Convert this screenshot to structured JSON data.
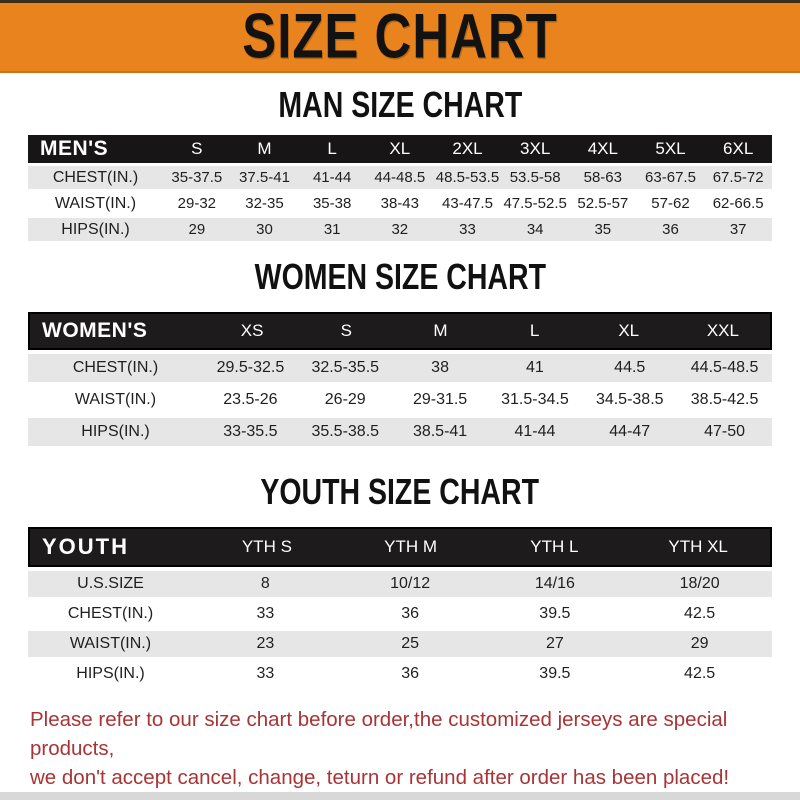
{
  "banner": {
    "title": "SIZE CHART"
  },
  "colors": {
    "banner_bg": "#E8831D",
    "header_bar": "#171515",
    "row_gray": "#E6E6E6",
    "disclaimer_red": "#A93435"
  },
  "sections": [
    {
      "heading": "MAN SIZE CHART",
      "header_label": "MEN'S",
      "columns": [
        "S",
        "M",
        "L",
        "XL",
        "2XL",
        "3XL",
        "4XL",
        "5XL",
        "6XL"
      ],
      "rows": [
        {
          "label": "CHEST(IN.)",
          "values": [
            "35-37.5",
            "37.5-41",
            "41-44",
            "44-48.5",
            "48.5-53.5",
            "53.5-58",
            "58-63",
            "63-67.5",
            "67.5-72"
          ]
        },
        {
          "label": "WAIST(IN.)",
          "values": [
            "29-32",
            "32-35",
            "35-38",
            "38-43",
            "43-47.5",
            "47.5-52.5",
            "52.5-57",
            "57-62",
            "62-66.5"
          ]
        },
        {
          "label": "HIPS(IN.)",
          "values": [
            "29",
            "30",
            "31",
            "32",
            "33",
            "34",
            "35",
            "36",
            "37"
          ]
        }
      ]
    },
    {
      "heading": "WOMEN SIZE CHART",
      "header_label": "WOMEN'S",
      "columns": [
        "XS",
        "S",
        "M",
        "L",
        "XL",
        "XXL"
      ],
      "rows": [
        {
          "label": "CHEST(IN.)",
          "values": [
            "29.5-32.5",
            "32.5-35.5",
            "38",
            "41",
            "44.5",
            "44.5-48.5"
          ]
        },
        {
          "label": "WAIST(IN.)",
          "values": [
            "23.5-26",
            "26-29",
            "29-31.5",
            "31.5-34.5",
            "34.5-38.5",
            "38.5-42.5"
          ]
        },
        {
          "label": "HIPS(IN.)",
          "values": [
            "33-35.5",
            "35.5-38.5",
            "38.5-41",
            "41-44",
            "44-47",
            "47-50"
          ]
        }
      ]
    },
    {
      "heading": "YOUTH SIZE CHART",
      "header_label": "YOUTH",
      "columns": [
        "YTH S",
        "YTH M",
        "YTH L",
        "YTH XL"
      ],
      "rows": [
        {
          "label": "U.S.SIZE",
          "values": [
            "8",
            "10/12",
            "14/16",
            "18/20"
          ]
        },
        {
          "label": "CHEST(IN.)",
          "values": [
            "33",
            "36",
            "39.5",
            "42.5"
          ]
        },
        {
          "label": "WAIST(IN.)",
          "values": [
            "23",
            "25",
            "27",
            "29"
          ]
        },
        {
          "label": "HIPS(IN.)",
          "values": [
            "33",
            "36",
            "39.5",
            "42.5"
          ]
        }
      ]
    }
  ],
  "disclaimer": {
    "line1": "Please refer to our size chart before order,the customized jerseys are special products,",
    "line2": "we don't accept cancel, change, teturn or refund after order has been placed!"
  }
}
